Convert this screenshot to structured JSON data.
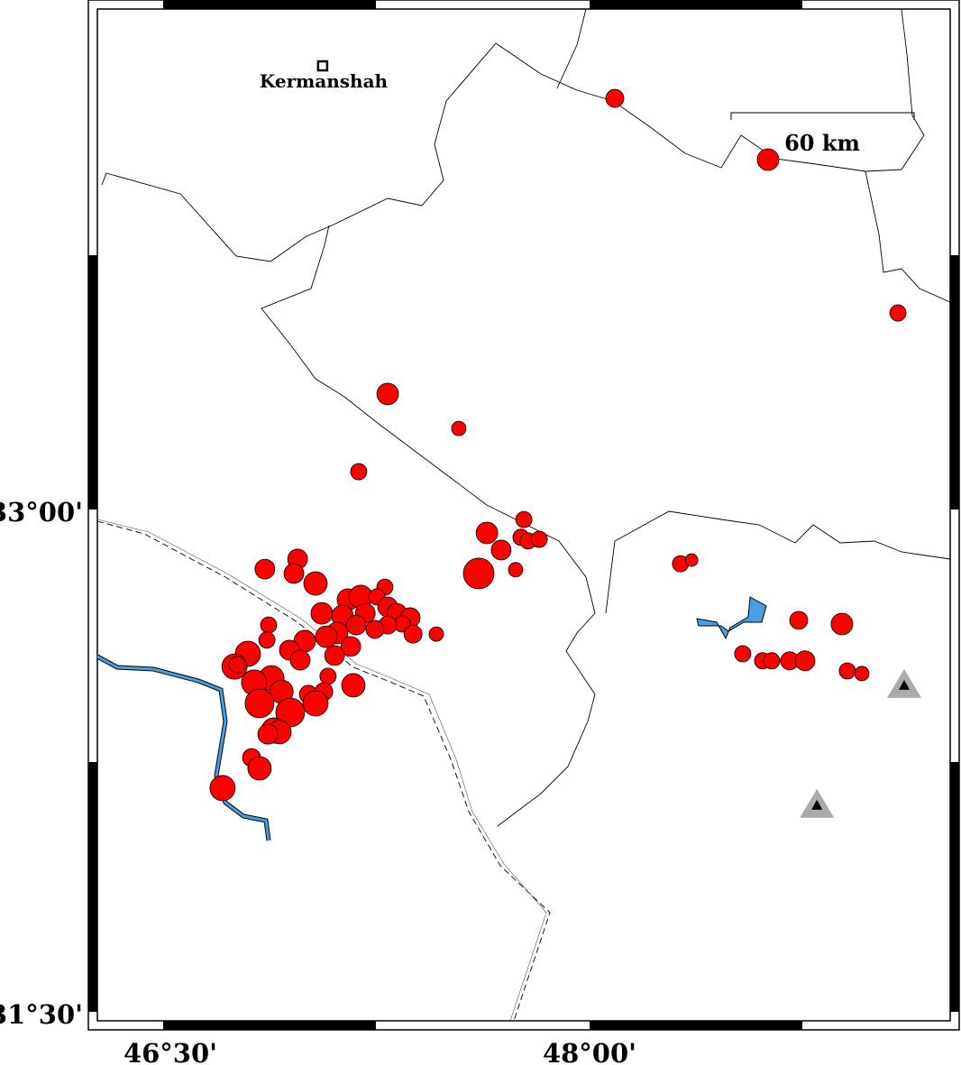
{
  "map": {
    "projection": "linear lon/lat",
    "lon_range": [
      46.08,
      49.08
    ],
    "lat_range": [
      31.5,
      34.52
    ],
    "x_ticks": [
      {
        "value": 46.5,
        "label": "46°30'"
      },
      {
        "value": 48.0,
        "label": "48°00'"
      }
    ],
    "y_ticks": [
      {
        "value": 33.0,
        "label": "33°00'"
      },
      {
        "value": 31.5,
        "label": "31°30'"
      }
    ],
    "colors": {
      "earthquake": "#ff0000",
      "water": "#4a9de0",
      "station": "#aaaaaa",
      "border": "#000000"
    },
    "city": {
      "name": "Kermanshah",
      "lon": 47.061,
      "lat": 34.325,
      "symbol": "square"
    },
    "scale_bar": {
      "label": "60 km"
    },
    "stations": [
      {
        "lon": 49.107,
        "lat": 32.475,
        "symbol": "triangle"
      },
      {
        "lon": 48.8,
        "lat": 32.117,
        "symbol": "triangle"
      }
    ],
    "earthquakes": [
      [
        48.089,
        34.228,
        4.0
      ],
      [
        48.628,
        34.045,
        4.8
      ],
      [
        49.085,
        33.587,
        3.6
      ],
      [
        47.29,
        33.345,
        4.8
      ],
      [
        47.54,
        33.242,
        3.2
      ],
      [
        47.188,
        33.113,
        3.6
      ],
      [
        47.769,
        32.97,
        3.6
      ],
      [
        47.639,
        32.93,
        4.8
      ],
      [
        47.759,
        32.917,
        3.6
      ],
      [
        47.784,
        32.906,
        3.6
      ],
      [
        47.823,
        32.911,
        3.6
      ],
      [
        47.689,
        32.879,
        4.4
      ],
      [
        47.61,
        32.809,
        6.8
      ],
      [
        47.74,
        32.82,
        3.2
      ],
      [
        48.32,
        32.838,
        3.6
      ],
      [
        48.359,
        32.849,
        2.8
      ],
      [
        48.736,
        32.669,
        4.0
      ],
      [
        48.888,
        32.658,
        4.8
      ],
      [
        48.539,
        32.569,
        3.6
      ],
      [
        48.609,
        32.548,
        3.6
      ],
      [
        48.641,
        32.548,
        3.6
      ],
      [
        48.704,
        32.548,
        4.0
      ],
      [
        48.758,
        32.548,
        4.4
      ],
      [
        48.907,
        32.518,
        3.6
      ],
      [
        48.958,
        32.51,
        3.2
      ],
      [
        47.461,
        32.628,
        3.2
      ],
      [
        46.858,
        32.822,
        4.4
      ],
      [
        46.973,
        32.852,
        4.4
      ],
      [
        46.96,
        32.809,
        4.4
      ],
      [
        47.036,
        32.779,
        5.2
      ],
      [
        47.15,
        32.731,
        4.8
      ],
      [
        47.195,
        32.739,
        5.2
      ],
      [
        47.28,
        32.768,
        3.6
      ],
      [
        47.252,
        32.739,
        3.6
      ],
      [
        47.058,
        32.69,
        4.8
      ],
      [
        47.131,
        32.682,
        4.8
      ],
      [
        47.211,
        32.69,
        4.4
      ],
      [
        47.29,
        32.709,
        4.4
      ],
      [
        47.322,
        32.69,
        4.4
      ],
      [
        47.369,
        32.677,
        4.4
      ],
      [
        47.341,
        32.658,
        3.6
      ],
      [
        47.379,
        32.628,
        4.0
      ],
      [
        47.29,
        32.655,
        4.0
      ],
      [
        47.245,
        32.642,
        4.0
      ],
      [
        47.179,
        32.655,
        4.4
      ],
      [
        47.112,
        32.631,
        4.8
      ],
      [
        47.074,
        32.62,
        4.8
      ],
      [
        46.998,
        32.607,
        4.8
      ],
      [
        46.944,
        32.58,
        4.4
      ],
      [
        46.871,
        32.655,
        3.6
      ],
      [
        46.865,
        32.61,
        3.6
      ],
      [
        47.16,
        32.591,
        4.4
      ],
      [
        47.103,
        32.564,
        4.4
      ],
      [
        46.982,
        32.55,
        4.4
      ],
      [
        46.798,
        32.569,
        5.6
      ],
      [
        46.751,
        32.531,
        5.6
      ],
      [
        46.76,
        32.537,
        3.6
      ],
      [
        46.881,
        32.496,
        5.6
      ],
      [
        46.82,
        32.483,
        5.6
      ],
      [
        46.916,
        32.456,
        5.2
      ],
      [
        47.08,
        32.502,
        3.6
      ],
      [
        47.169,
        32.475,
        5.2
      ],
      [
        47.011,
        32.448,
        4.0
      ],
      [
        47.065,
        32.456,
        4.0
      ],
      [
        46.839,
        32.421,
        6.4
      ],
      [
        46.947,
        32.394,
        6.4
      ],
      [
        47.036,
        32.421,
        5.6
      ],
      [
        46.89,
        32.34,
        5.6
      ],
      [
        46.909,
        32.335,
        5.2
      ],
      [
        46.868,
        32.329,
        4.4
      ],
      [
        46.811,
        32.259,
        4.0
      ],
      [
        46.839,
        32.227,
        5.2
      ],
      [
        46.709,
        32.168,
        5.6
      ]
    ]
  }
}
